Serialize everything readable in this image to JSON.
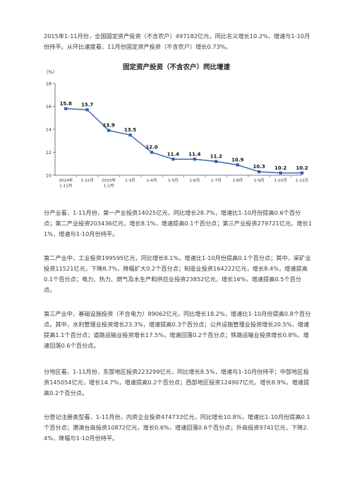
{
  "paragraphs": {
    "p1": "2015年1-11月份，全国固定资产投资（不含农户）497182亿元，同比名义增长10.2%，增速与1-10月份持平。从环比速度看，11月份固定资产投资（不含农户）增长0.73%。",
    "p2": "分产业看，1-11月份，第一产业投资14025亿元，同比增长28.7%，增速比1-10月份提高0.6个百分点；第二产业投资203436亿元，增长8.1%，增速提高0.1个百分点；第三产业投资279721亿元，增长11%，增速与1-10月份持平。",
    "p3": "第二产业中，工业投资199595亿元，同比增长8.1%，增速比1-10月份提高0.1个百分点；其中，采矿业投资11521亿元，下降8.7%，降幅扩大0.2个百分点；制造业投资164222亿元，增长8.4%，增速提高0.1个百分点；电力、热力、燃气及水生产和供应业投资23852亿元，增长16%，增速提高0.5个百分点。",
    "p4": "第三产业中，基础设施投资（不含电力）89062亿元，同比增长18.2%，增速比1-10月份提高0.8个百分点。其中，水利管理业投资增长23.3%，增速提高0.3个百分点；公共设施管理业投资增长20.5%，增速提高1.1个百分点；道路运输业投资增长17.5%，增速回落0.2个百分点；铁路运输业投资增长0.8%，增速回落0.6个百分点。",
    "p5": "分地区看，1-11月份，东部地区投资223299亿元，同比增长8.5%，增速与1-10月份持平；中部地区投资145054亿元，增长14.7%，增速提高0.2个百分点；西部地区投资124907亿元，增长8.9%，增速提高0.2个百分点。",
    "p6": "分登记注册类型看，1-11月份，内资企业投资474733亿元，同比增长10.8%，增速比1-10月份提高0.1个百分点；港澳台商投资10872亿元，增长0.6%，增速回落0.6个百分点；外商投资9741亿元，下降2.4%，降幅与1-10月份持平。"
  },
  "chart_data": {
    "type": "line",
    "title": "固定资产投资（不含农户）同比增速",
    "ylabel": "（%）",
    "ylim": [
      10,
      18
    ],
    "yticks": [
      10,
      12,
      14,
      16,
      18
    ],
    "categories": [
      "2014年\n1-11月",
      "1-12月",
      "2015年\n1-2月",
      "1-3月",
      "1-4月",
      "1-5月",
      "1-6月",
      "1-7月",
      "1-8月",
      "1-9月",
      "1-10月",
      "1-11月"
    ],
    "values": [
      15.8,
      15.7,
      13.9,
      13.5,
      12.0,
      11.4,
      11.4,
      11.2,
      10.9,
      10.3,
      10.2,
      10.2
    ],
    "value_labels": [
      "15.8",
      "15.7",
      "13.9",
      "13.5",
      "12.0",
      "11.4",
      "11.4",
      "11.2",
      "10.9",
      "10.3",
      "10.2",
      "10.2"
    ],
    "line_color": "#2f5fa8",
    "grid": false
  }
}
